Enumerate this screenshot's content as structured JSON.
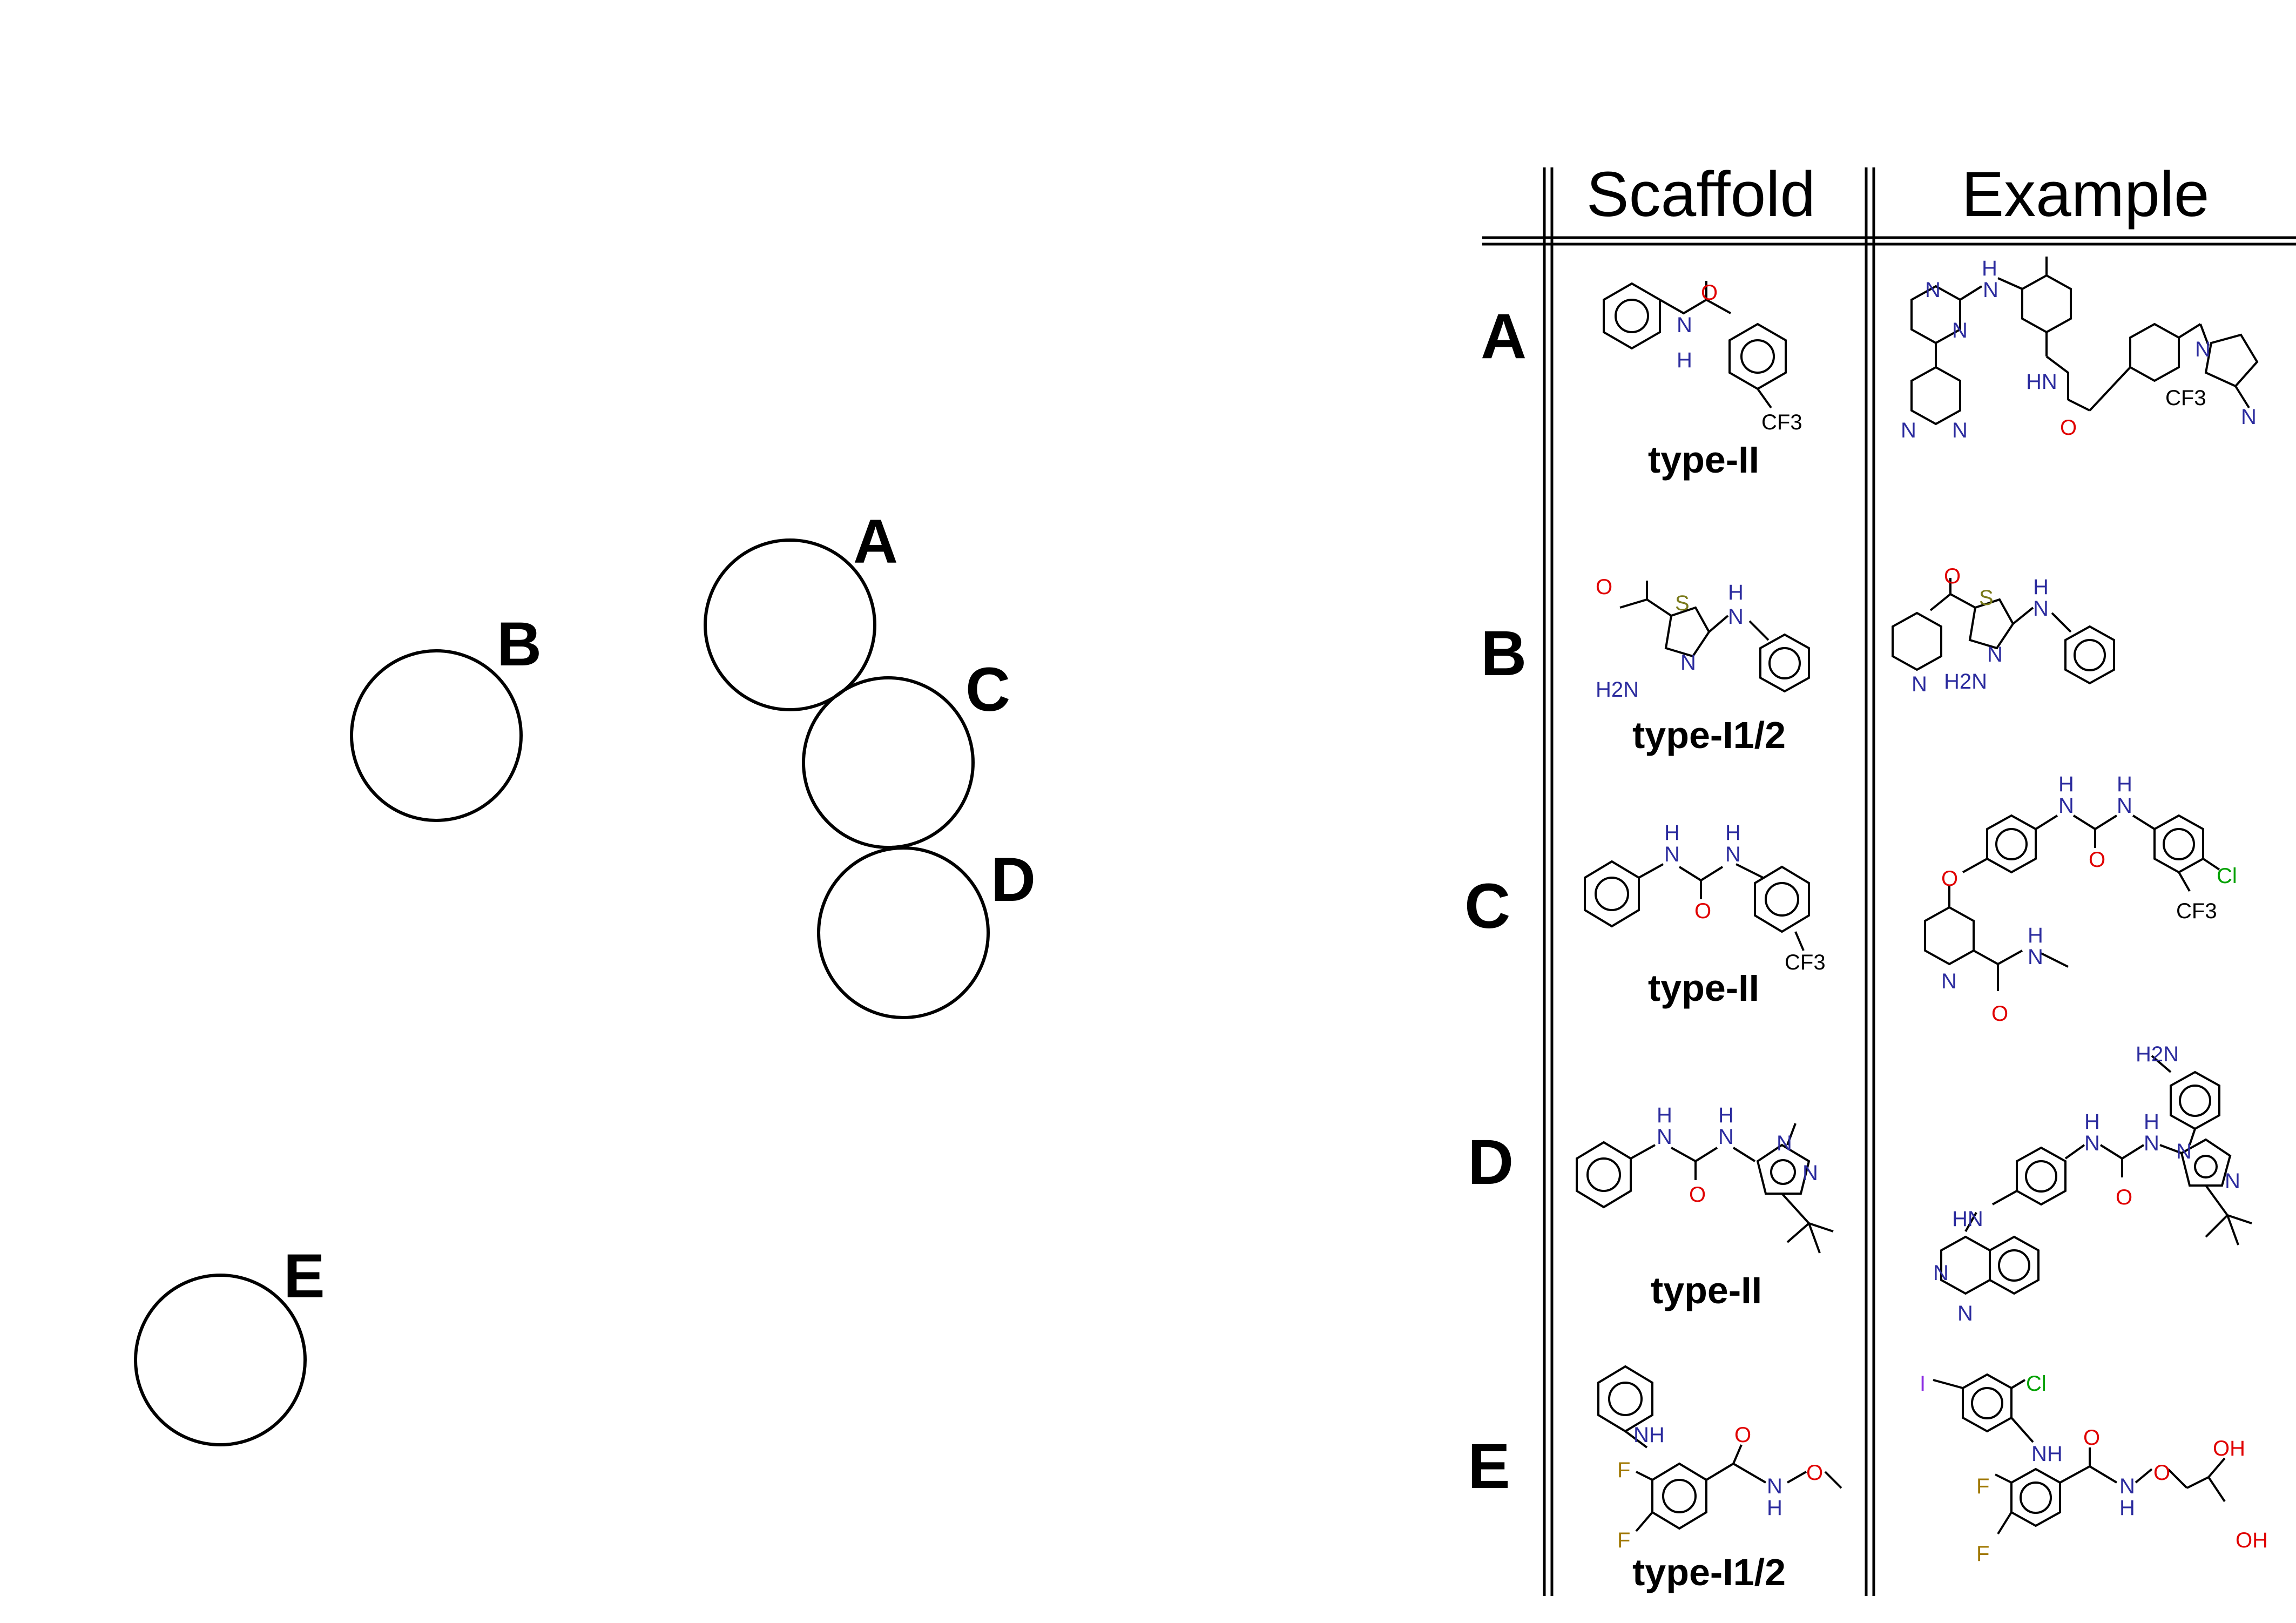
{
  "clusters": [
    {
      "label": "A"
    },
    {
      "label": "B"
    },
    {
      "label": "C"
    },
    {
      "label": "D"
    },
    {
      "label": "E"
    }
  ],
  "table": {
    "headers": {
      "scaffold": "Scaffold",
      "example": "Example"
    },
    "rows": [
      {
        "label": "A",
        "type": "type-II"
      },
      {
        "label": "B",
        "type": "type-I1/2"
      },
      {
        "label": "C",
        "type": "type-II"
      },
      {
        "label": "D",
        "type": "type-II"
      },
      {
        "label": "E",
        "type": "type-I1/2"
      }
    ]
  },
  "atom_labels": {
    "O": "O",
    "N": "N",
    "H": "H",
    "NH": "NH",
    "HN": "HN",
    "S": "S",
    "CF3": "CF3",
    "Cl": "Cl",
    "F": "F",
    "I": "I",
    "OH": "OH",
    "H2N": "H2N",
    "N_dim": "N"
  },
  "colors": {
    "nitrogen": "#2b2b9e",
    "oxygen": "#e00000",
    "sulfur": "#7a7a1a",
    "chlorine": "#00a000",
    "fluorine": "#a07800",
    "iodine": "#8a2be2",
    "bond": "#000000"
  }
}
